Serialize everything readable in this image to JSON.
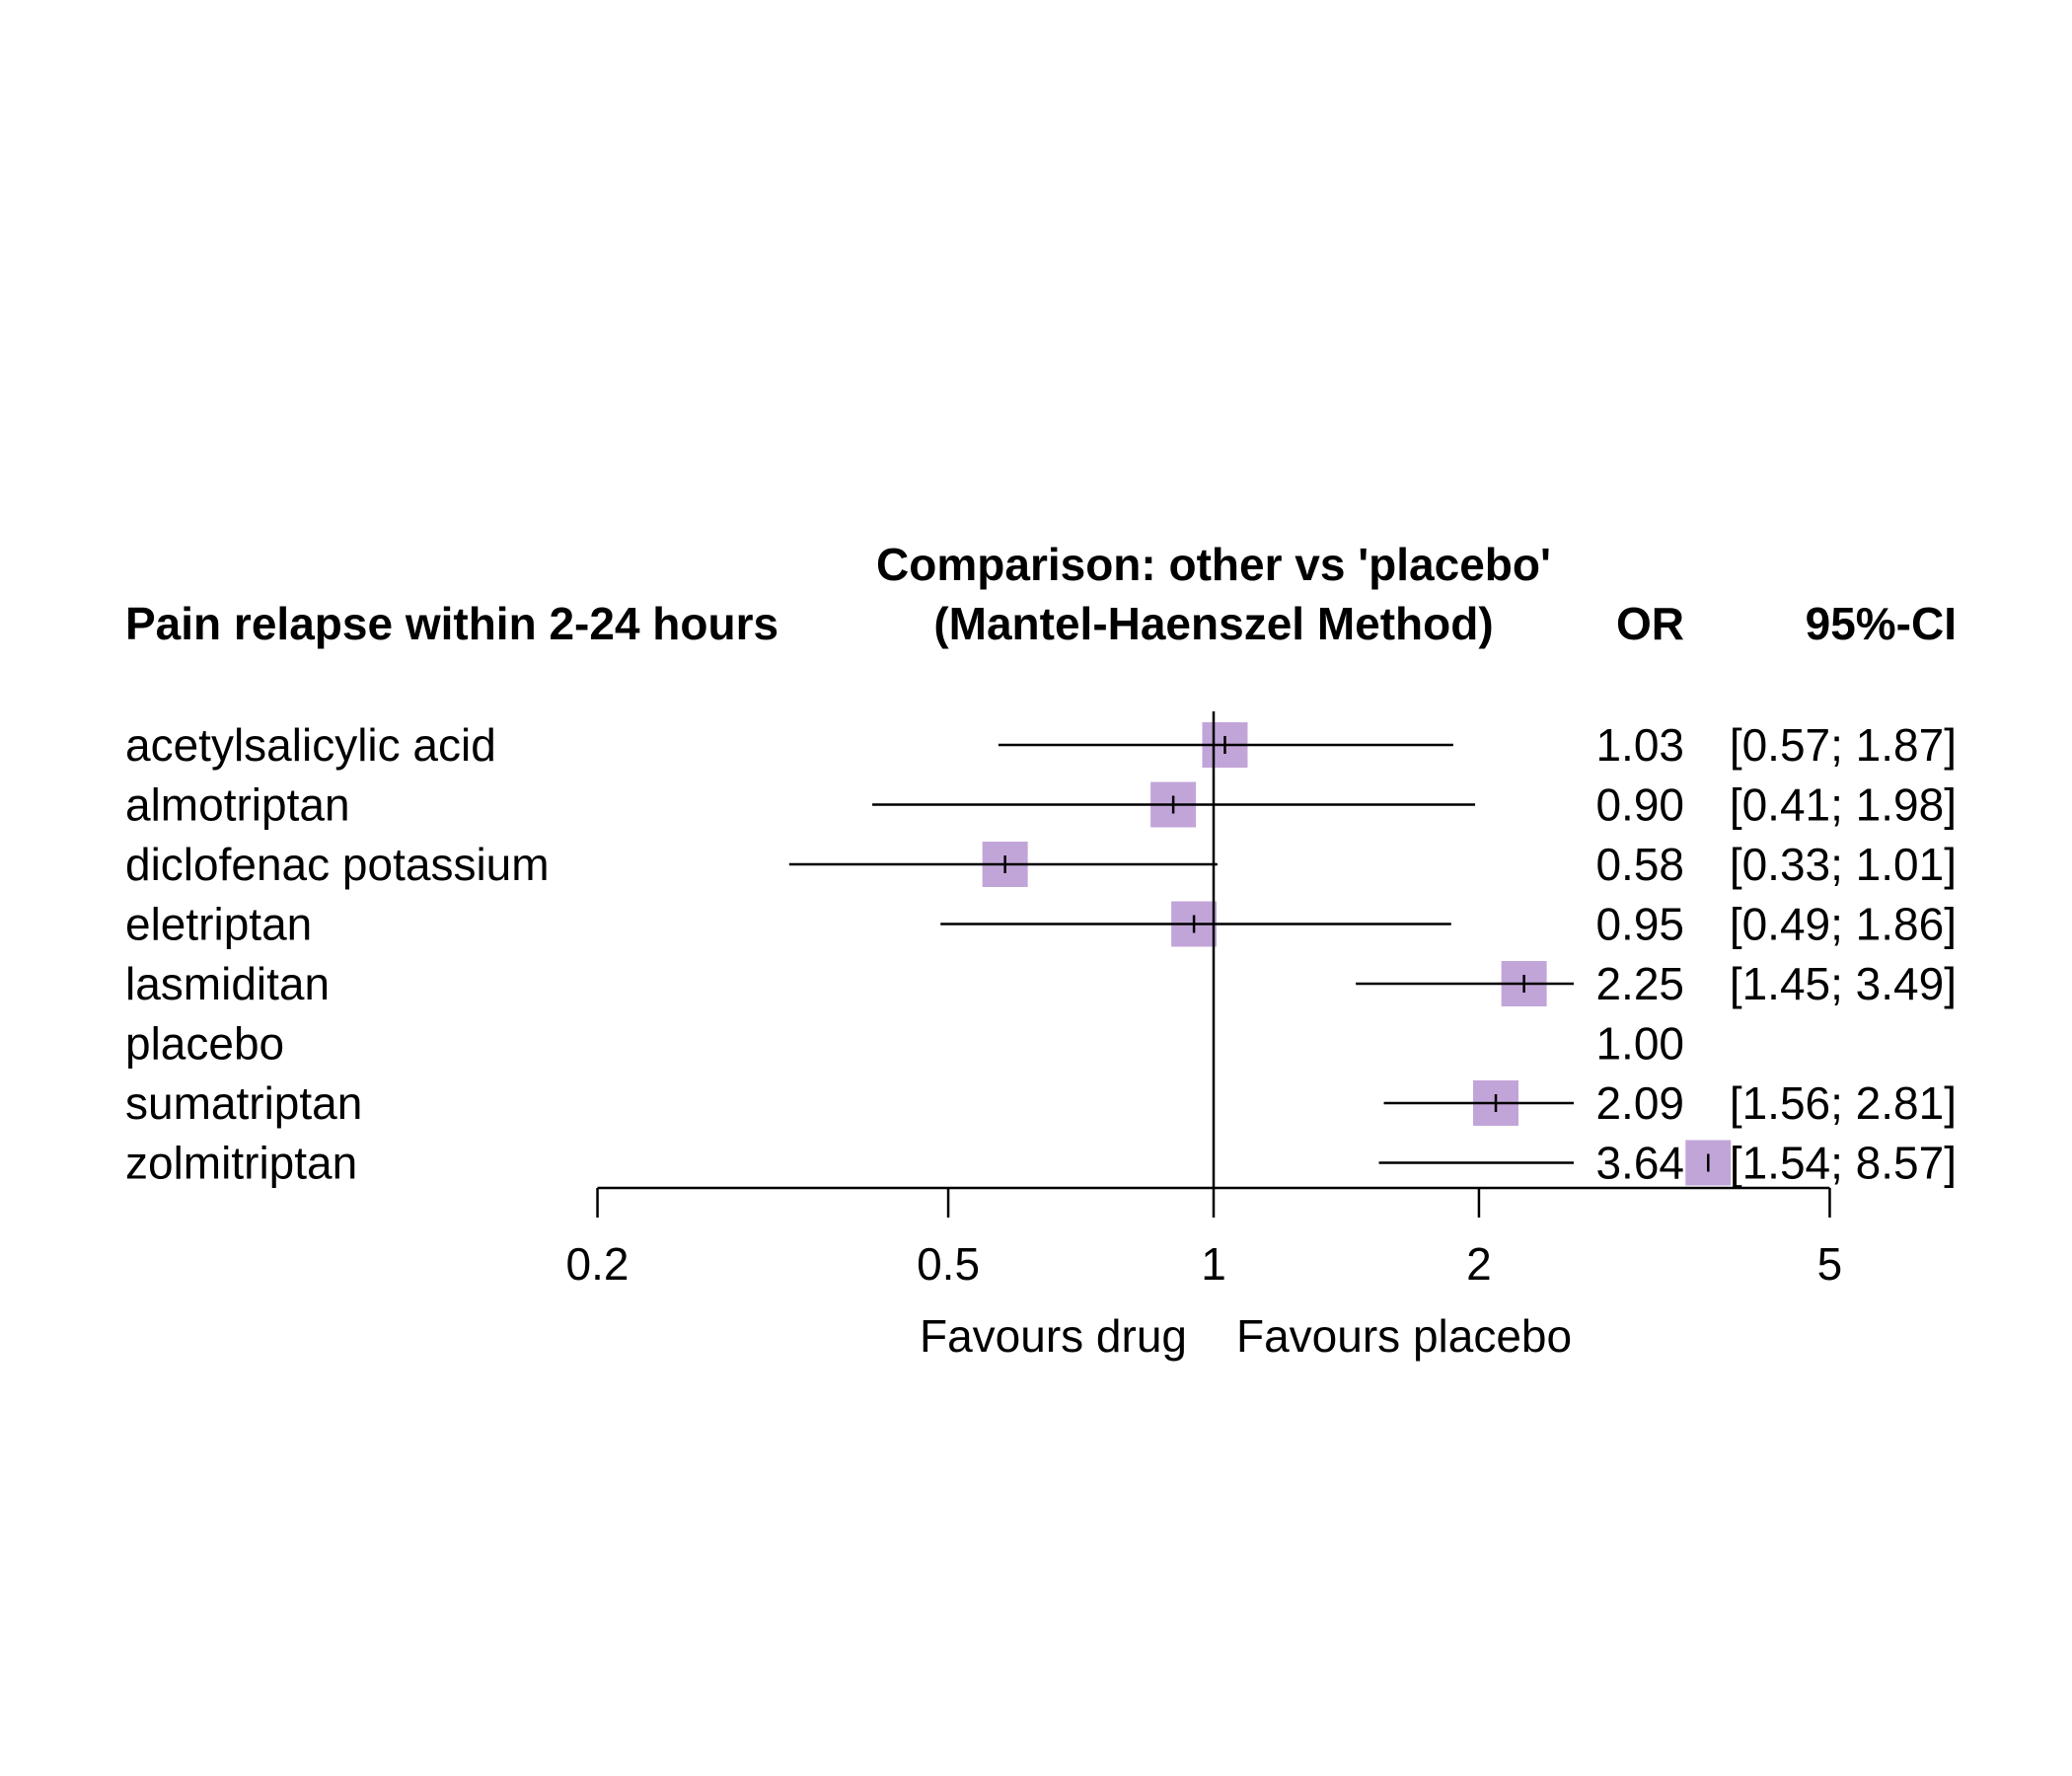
{
  "chart_data": {
    "type": "forest",
    "title": "Comparison: other vs 'placebo'",
    "subtitle": "(Mantel-Haenszel Method)",
    "row_header": "Pain relapse within 2-24 hours",
    "col_or_header": "OR",
    "col_ci_header": "95%-CI",
    "x_scale": "log",
    "x_range": [
      0.2,
      5
    ],
    "x_ticks": [
      0.2,
      0.5,
      1,
      2,
      5
    ],
    "x_tick_labels": [
      "0.2",
      "0.5",
      "1",
      "2",
      "5"
    ],
    "reference_line": 1,
    "label_left": "Favours drug",
    "label_right": "Favours placebo",
    "marker_color": "#c2a5d8",
    "rows": [
      {
        "label": "acetylsalicylic acid",
        "or": 1.03,
        "lower": 0.57,
        "upper": 1.87,
        "or_text": "1.03",
        "ci_text": "[0.57; 1.87]"
      },
      {
        "label": "almotriptan",
        "or": 0.9,
        "lower": 0.41,
        "upper": 1.98,
        "or_text": "0.90",
        "ci_text": "[0.41; 1.98]"
      },
      {
        "label": "diclofenac potassium",
        "or": 0.58,
        "lower": 0.33,
        "upper": 1.01,
        "or_text": "0.58",
        "ci_text": "[0.33; 1.01]"
      },
      {
        "label": "eletriptan",
        "or": 0.95,
        "lower": 0.49,
        "upper": 1.86,
        "or_text": "0.95",
        "ci_text": "[0.49; 1.86]"
      },
      {
        "label": "lasmiditan",
        "or": 2.25,
        "lower": 1.45,
        "upper": 3.49,
        "or_text": "2.25",
        "ci_text": "[1.45; 3.49]"
      },
      {
        "label": "placebo",
        "or": 1.0,
        "lower": null,
        "upper": null,
        "or_text": "1.00",
        "ci_text": ""
      },
      {
        "label": "sumatriptan",
        "or": 2.09,
        "lower": 1.56,
        "upper": 2.81,
        "or_text": "2.09",
        "ci_text": "[1.56; 2.81]"
      },
      {
        "label": "zolmitriptan",
        "or": 3.64,
        "lower": 1.54,
        "upper": 8.57,
        "or_text": "3.64",
        "ci_text": "[1.54; 8.57]"
      }
    ]
  }
}
